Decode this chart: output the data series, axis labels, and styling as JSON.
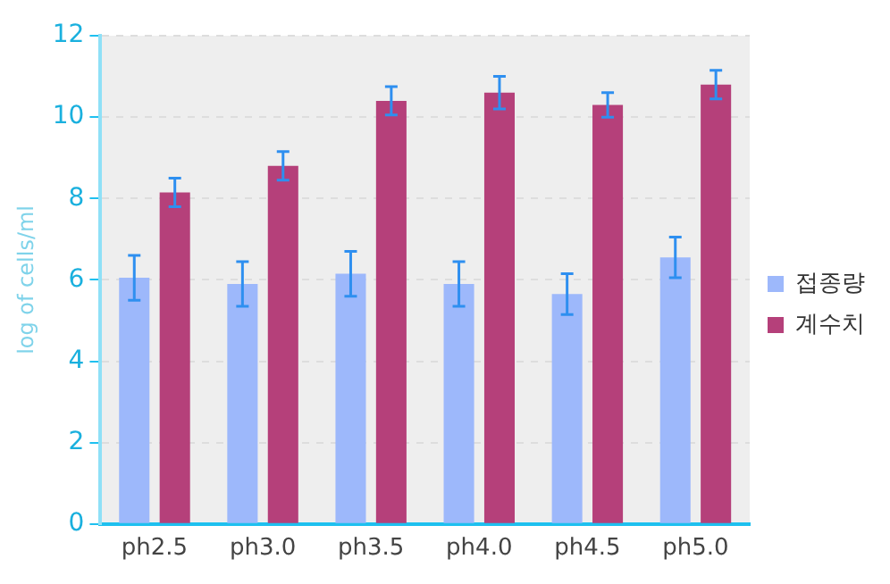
{
  "chart_data": {
    "type": "bar",
    "ylabel": "log of cells/ml",
    "categories": [
      "ph2.5",
      "ph3.0",
      "ph3.5",
      "ph4.0",
      "ph4.5",
      "ph5.0"
    ],
    "series": [
      {
        "name": "접종량",
        "color": "#9db8fb",
        "values": [
          6.05,
          5.9,
          6.15,
          5.9,
          5.65,
          6.55
        ],
        "errors": [
          0.55,
          0.55,
          0.55,
          0.55,
          0.5,
          0.5
        ]
      },
      {
        "name": "계수치",
        "color": "#b5407a",
        "values": [
          8.15,
          8.8,
          10.4,
          10.6,
          10.3,
          10.8
        ],
        "errors": [
          0.35,
          0.35,
          0.35,
          0.4,
          0.3,
          0.35
        ]
      }
    ],
    "ylim": [
      0,
      12
    ],
    "yticks": [
      0,
      2,
      4,
      6,
      8,
      10,
      12
    ],
    "grid": "y",
    "legend": "right"
  }
}
